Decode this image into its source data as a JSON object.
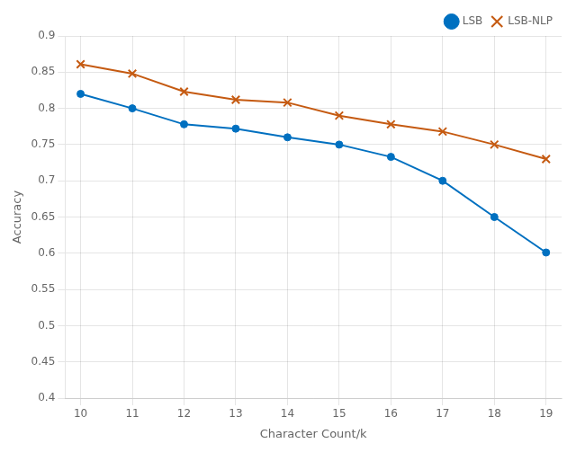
{
  "chart_data": {
    "type": "line",
    "x": [
      10,
      11,
      12,
      13,
      14,
      15,
      16,
      17,
      18,
      19
    ],
    "series": [
      {
        "name": "LSB",
        "color": "#0070c0",
        "marker": "circle",
        "values": [
          0.82,
          0.8,
          0.778,
          0.772,
          0.76,
          0.75,
          0.733,
          0.7,
          0.65,
          0.601
        ]
      },
      {
        "name": "LSB-NLP",
        "color": "#c55a11",
        "marker": "x",
        "values": [
          0.861,
          0.848,
          0.823,
          0.812,
          0.808,
          0.79,
          0.778,
          0.768,
          0.75,
          0.73
        ]
      }
    ],
    "xlabel": "Character Count/k",
    "ylabel": "Accuracy",
    "xlim": [
      9.7,
      19.3
    ],
    "ylim": [
      0.4,
      0.9
    ],
    "xticks": [
      10,
      11,
      12,
      13,
      14,
      15,
      16,
      17,
      18,
      19
    ],
    "yticks": [
      0.4,
      0.45,
      0.5,
      0.55,
      0.6,
      0.65,
      0.7,
      0.75,
      0.8,
      0.85,
      0.9
    ],
    "grid": true,
    "legend": "upper right"
  }
}
